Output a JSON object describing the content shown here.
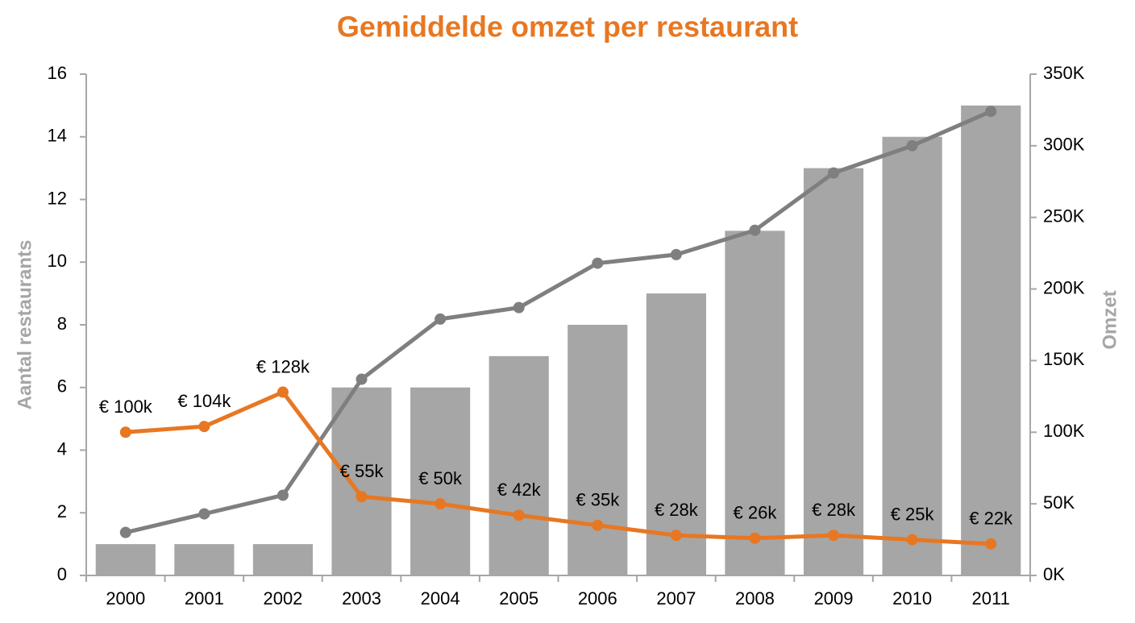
{
  "chart_data": {
    "type": "combo",
    "title": "Gemiddelde omzet per restaurant",
    "y_label": "Aantal restaurants",
    "y2_label": "Omzet",
    "categories": [
      "2000",
      "2001",
      "2002",
      "2003",
      "2004",
      "2005",
      "2006",
      "2007",
      "2008",
      "2009",
      "2010",
      "2011"
    ],
    "ylim": [
      0,
      16
    ],
    "yticks": [
      0,
      2,
      4,
      6,
      8,
      10,
      12,
      14,
      16
    ],
    "y2lim": [
      0,
      350
    ],
    "y2ticks": [
      {
        "value": 0,
        "label": "0K"
      },
      {
        "value": 50,
        "label": "50K"
      },
      {
        "value": 100,
        "label": "100K"
      },
      {
        "value": 150,
        "label": "150K"
      },
      {
        "value": 200,
        "label": "200K"
      },
      {
        "value": 250,
        "label": "250K"
      },
      {
        "value": 300,
        "label": "300K"
      },
      {
        "value": 350,
        "label": "350K"
      }
    ],
    "grid": false,
    "series": [
      {
        "type": "bar",
        "color": "#a6a6a6",
        "values": [
          1,
          1,
          1,
          6,
          6,
          7,
          8,
          9,
          11,
          13,
          14,
          15
        ]
      },
      {
        "type": "line",
        "axis": "y2",
        "color": "#7f7f7f",
        "values": [
          30,
          43,
          56,
          137,
          179,
          187,
          218,
          224,
          241,
          281,
          300,
          324
        ]
      },
      {
        "type": "line",
        "axis": "y2",
        "color": "#e87722",
        "values": [
          100,
          104,
          128,
          55,
          50,
          42,
          35,
          28,
          26,
          28,
          25,
          22
        ],
        "value_labels": [
          "€ 100k",
          "€ 104k",
          "€ 128k",
          "€ 55k",
          "€ 50k",
          "€ 42k",
          "€ 35k",
          "€ 28k",
          "€ 26k",
          "€ 28k",
          "€ 25k",
          "€ 22k"
        ]
      }
    ]
  }
}
